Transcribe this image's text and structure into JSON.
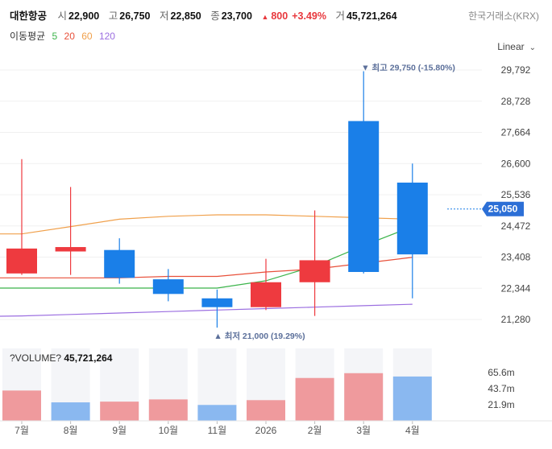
{
  "header": {
    "stock_name": "대한항공",
    "open_label": "시",
    "open": "22,900",
    "high_label": "고",
    "high": "26,750",
    "low_label": "저",
    "low": "22,850",
    "close_label": "종",
    "close": "23,700",
    "change_arrow": "▲",
    "change": "800",
    "change_pct": "+3.49%",
    "volume_label": "거",
    "volume": "45,721,264",
    "exchange": "한국거래소(KRX)"
  },
  "ma_legend": {
    "title": "이동평균",
    "items": [
      {
        "label": "5",
        "color": "#3cb44b"
      },
      {
        "label": "20",
        "color": "#e8503a"
      },
      {
        "label": "60",
        "color": "#f0a04b"
      },
      {
        "label": "120",
        "color": "#9b6ee0"
      }
    ]
  },
  "scale_mode": "Linear",
  "volume_header": {
    "label": "?VOLUME?",
    "value": "45,721,264"
  },
  "colors": {
    "up": "#ee3a3f",
    "down": "#1a7fe8",
    "up_vol": "#ef9a9d",
    "down_vol": "#8ab8f0"
  },
  "chart_data": {
    "type": "candlestick",
    "categories": [
      "7월",
      "8월",
      "9월",
      "10월",
      "11월",
      "2026",
      "2월",
      "3월",
      "4월"
    ],
    "candles": [
      {
        "open": 22850,
        "high": 26750,
        "low": 22800,
        "close": 23700
      },
      {
        "open": 23600,
        "high": 25800,
        "low": 22800,
        "close": 23750
      },
      {
        "open": 23650,
        "high": 24050,
        "low": 22500,
        "close": 22700
      },
      {
        "open": 22650,
        "high": 23000,
        "low": 21900,
        "close": 22150
      },
      {
        "open": 22000,
        "high": 22300,
        "low": 21000,
        "close": 21700
      },
      {
        "open": 21700,
        "high": 23350,
        "low": 21600,
        "close": 22550
      },
      {
        "open": 22550,
        "high": 25000,
        "low": 21400,
        "close": 23300
      },
      {
        "open": 28050,
        "high": 29750,
        "low": 22850,
        "close": 22900
      },
      {
        "open": 25950,
        "high": 26600,
        "low": 22000,
        "close": 23500
      }
    ],
    "ma": {
      "5": [
        null,
        null,
        null,
        null,
        22350,
        22600,
        23100,
        23800,
        24450
      ],
      "20": [
        22700,
        22700,
        22700,
        22750,
        22750,
        22900,
        23000,
        23200,
        23400
      ],
      "60": [
        24200,
        24450,
        24700,
        24800,
        24850,
        24850,
        24800,
        24750,
        24700
      ],
      "120": [
        21400,
        21450,
        21500,
        21550,
        21600,
        21650,
        21700,
        21750,
        21800
      ]
    },
    "y_ticks": [
      "29,792",
      "28,728",
      "27,664",
      "26,600",
      "25,536",
      "24,472",
      "23,408",
      "22,344",
      "21,280"
    ],
    "ylim": [
      20736,
      30326
    ],
    "current_price_label": "25,050",
    "current_price": 25050,
    "high_annotation": "최고 29,750 (-15.80%)",
    "low_annotation": "최저 21,000 (19.29%)",
    "volume": [
      41000000,
      25000000,
      26000000,
      29000000,
      21500000,
      28000000,
      58000000,
      64500000,
      60000000
    ],
    "volume_up": [
      true,
      false,
      true,
      true,
      false,
      true,
      true,
      true,
      false
    ],
    "volume_ticks": [
      "65.6m",
      "43.7m",
      "21.9m"
    ],
    "volume_tick_values": [
      65600000,
      43700000,
      21900000
    ],
    "volume_max": 98000000
  }
}
